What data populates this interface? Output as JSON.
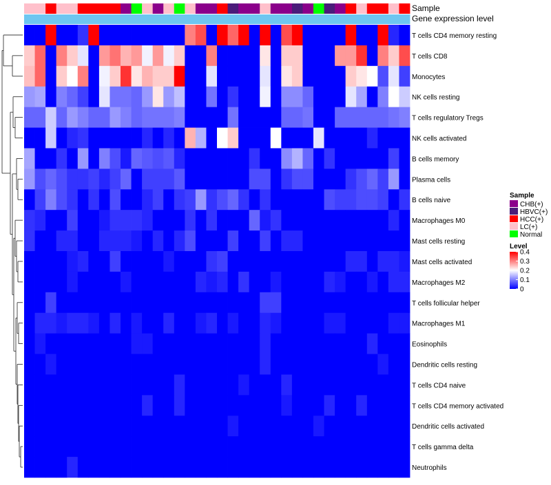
{
  "chart_data": {
    "type": "heatmap",
    "title": "",
    "annotation_tracks": [
      "Sample",
      "Gene expression level"
    ],
    "rows": [
      "T cells CD4 memory resting",
      "T cells CD8",
      "Monocytes",
      "NK cells resting",
      "T cells regulatory  Tregs",
      "NK cells activated",
      "B cells memory",
      "Plasma cells",
      "B cells naive",
      "Macrophages M0",
      "Mast cells resting",
      "Mast cells activated",
      "Macrophages M2",
      "T cells follicular helper",
      "Macrophages M1",
      "Eosinophils",
      "Dendritic cells resting",
      "T cells CD4 naive",
      "T cells CD4 memory activated",
      "Dendritic cells activated",
      "T cells gamma delta",
      "Neutrophils"
    ],
    "sample_groups": [
      "LC(+)",
      "LC(+)",
      "HCC(+)",
      "LC(+)",
      "LC(+)",
      "HCC(+)",
      "HCC(+)",
      "HCC(+)",
      "HCC(+)",
      "CHB(+)",
      "Normal",
      "LC(+)",
      "CHB(+)",
      "LC(+)",
      "Normal",
      "LC(+)",
      "CHB(+)",
      "CHB(+)",
      "HCC(+)",
      "HBVC(+)",
      "CHB(+)",
      "CHB(+)",
      "LC(+)",
      "CHB(+)",
      "CHB(+)",
      "HBVC(+)",
      "CHB(+)",
      "Normal",
      "HBVC(+)",
      "CHB(+)",
      "HCC(+)",
      "LC(+)",
      "HCC(+)",
      "HCC(+)",
      "LC(+)",
      "HCC(+)"
    ],
    "values": [
      [
        0.0,
        0.0,
        0.4,
        0.0,
        0.0,
        0.04,
        0.4,
        0.0,
        0.0,
        0.0,
        0.0,
        0.0,
        0.0,
        0.0,
        0.0,
        0.3,
        0.34,
        0.0,
        0.4,
        0.32,
        0.4,
        0.0,
        0.4,
        0.0,
        0.34,
        0.4,
        0.0,
        0.0,
        0.0,
        0.0,
        0.4,
        0.0,
        0.0,
        0.4,
        0.03,
        0.0
      ],
      [
        0.24,
        0.32,
        0.0,
        0.3,
        0.24,
        0.18,
        0.0,
        0.28,
        0.31,
        0.26,
        0.28,
        0.19,
        0.28,
        0.19,
        0.24,
        0.0,
        0.0,
        0.3,
        0.0,
        0.0,
        0.0,
        0.0,
        0.22,
        0.0,
        0.24,
        0.24,
        0.0,
        0.0,
        0.0,
        0.28,
        0.28,
        0.36,
        0.0,
        0.3,
        0.24,
        0.34
      ],
      [
        0.25,
        0.32,
        0.0,
        0.24,
        0.2,
        0.3,
        0.0,
        0.19,
        0.24,
        0.36,
        0.22,
        0.26,
        0.24,
        0.24,
        0.4,
        0.0,
        0.0,
        0.18,
        0.0,
        0.0,
        0.0,
        0.0,
        0.18,
        0.0,
        0.22,
        0.24,
        0.0,
        0.0,
        0.0,
        0.0,
        0.24,
        0.22,
        0.2,
        0.06,
        0.18,
        0.05
      ],
      [
        0.12,
        0.13,
        0.0,
        0.1,
        0.08,
        0.05,
        0.0,
        0.18,
        0.09,
        0.09,
        0.08,
        0.12,
        0.22,
        0.12,
        0.15,
        0.0,
        0.0,
        0.09,
        0.0,
        0.04,
        0.0,
        0.0,
        0.19,
        0.0,
        0.11,
        0.11,
        0.08,
        0.0,
        0.0,
        0.0,
        0.18,
        0.13,
        0.0,
        0.1,
        0.2,
        0.16
      ],
      [
        0.08,
        0.08,
        0.16,
        0.08,
        0.12,
        0.1,
        0.08,
        0.08,
        0.12,
        0.1,
        0.08,
        0.09,
        0.09,
        0.09,
        0.1,
        0.0,
        0.0,
        0.0,
        0.0,
        0.09,
        0.0,
        0.0,
        0.0,
        0.0,
        0.08,
        0.08,
        0.09,
        0.0,
        0.0,
        0.08,
        0.08,
        0.08,
        0.08,
        0.08,
        0.09,
        0.1
      ],
      [
        0.0,
        0.0,
        0.16,
        0.0,
        0.03,
        0.04,
        0.0,
        0.0,
        0.0,
        0.0,
        0.0,
        0.03,
        0.0,
        0.03,
        0.0,
        0.26,
        0.14,
        0.0,
        0.2,
        0.24,
        0.0,
        0.0,
        0.0,
        0.2,
        0.0,
        0.0,
        0.0,
        0.18,
        0.0,
        0.0,
        0.0,
        0.0,
        0.03,
        0.0,
        0.0,
        0.0
      ],
      [
        0.13,
        0.0,
        0.0,
        0.04,
        0.0,
        0.12,
        0.0,
        0.1,
        0.06,
        0.02,
        0.08,
        0.07,
        0.06,
        0.07,
        0.03,
        0.0,
        0.0,
        0.0,
        0.0,
        0.0,
        0.0,
        0.04,
        0.0,
        0.0,
        0.11,
        0.14,
        0.08,
        0.0,
        0.04,
        0.0,
        0.0,
        0.0,
        0.0,
        0.0,
        0.05,
        0.0
      ],
      [
        0.12,
        0.06,
        0.08,
        0.06,
        0.04,
        0.04,
        0.05,
        0.03,
        0.05,
        0.08,
        0.0,
        0.05,
        0.05,
        0.05,
        0.07,
        0.0,
        0.0,
        0.0,
        0.0,
        0.0,
        0.0,
        0.06,
        0.06,
        0.0,
        0.04,
        0.06,
        0.06,
        0.0,
        0.0,
        0.0,
        0.04,
        0.06,
        0.08,
        0.05,
        0.12,
        0.0
      ],
      [
        0.0,
        0.05,
        0.1,
        0.06,
        0.04,
        0.0,
        0.04,
        0.0,
        0.06,
        0.0,
        0.0,
        0.03,
        0.05,
        0.0,
        0.04,
        0.05,
        0.12,
        0.04,
        0.06,
        0.08,
        0.04,
        0.0,
        0.04,
        0.0,
        0.0,
        0.0,
        0.0,
        0.0,
        0.06,
        0.05,
        0.05,
        0.06,
        0.06,
        0.05,
        0.0,
        0.04
      ],
      [
        0.04,
        0.03,
        0.0,
        0.0,
        0.05,
        0.0,
        0.0,
        0.02,
        0.04,
        0.04,
        0.04,
        0.03,
        0.0,
        0.0,
        0.0,
        0.04,
        0.0,
        0.04,
        0.0,
        0.0,
        0.0,
        0.08,
        0.02,
        0.04,
        0.0,
        0.0,
        0.0,
        0.0,
        0.0,
        0.0,
        0.0,
        0.0,
        0.0,
        0.0,
        0.03,
        0.0
      ],
      [
        0.04,
        0.0,
        0.0,
        0.03,
        0.03,
        0.0,
        0.0,
        0.03,
        0.03,
        0.03,
        0.02,
        0.0,
        0.03,
        0.0,
        0.03,
        0.06,
        0.0,
        0.0,
        0.0,
        0.05,
        0.0,
        0.0,
        0.05,
        0.0,
        0.03,
        0.03,
        0.0,
        0.0,
        0.0,
        0.0,
        0.0,
        0.0,
        0.0,
        0.0,
        0.0,
        0.0
      ],
      [
        0.0,
        0.0,
        0.0,
        0.0,
        0.02,
        0.03,
        0.0,
        0.0,
        0.05,
        0.0,
        0.0,
        0.0,
        0.0,
        0.02,
        0.0,
        0.0,
        0.0,
        0.04,
        0.05,
        0.0,
        0.0,
        0.0,
        0.0,
        0.0,
        0.0,
        0.0,
        0.0,
        0.0,
        0.0,
        0.0,
        0.03,
        0.03,
        0.0,
        0.03,
        0.03,
        0.02
      ],
      [
        0.0,
        0.0,
        0.0,
        0.0,
        0.02,
        0.0,
        0.0,
        0.0,
        0.0,
        0.02,
        0.0,
        0.0,
        0.0,
        0.0,
        0.0,
        0.0,
        0.03,
        0.02,
        0.03,
        0.0,
        0.04,
        0.0,
        0.0,
        0.02,
        0.0,
        0.0,
        0.0,
        0.0,
        0.03,
        0.02,
        0.0,
        0.0,
        0.02,
        0.0,
        0.03,
        0.03
      ],
      [
        0.0,
        0.0,
        0.05,
        0.0,
        0.0,
        0.0,
        0.0,
        0.0,
        0.0,
        0.0,
        0.0,
        0.0,
        0.0,
        0.0,
        0.0,
        0.0,
        0.0,
        0.0,
        0.0,
        0.0,
        0.0,
        0.0,
        0.05,
        0.05,
        0.0,
        0.0,
        0.0,
        0.0,
        0.0,
        0.0,
        0.0,
        0.0,
        0.0,
        0.0,
        0.0,
        0.0
      ],
      [
        0.0,
        0.03,
        0.03,
        0.02,
        0.03,
        0.03,
        0.02,
        0.0,
        0.03,
        0.0,
        0.02,
        0.0,
        0.0,
        0.03,
        0.0,
        0.0,
        0.02,
        0.03,
        0.0,
        0.02,
        0.0,
        0.0,
        0.03,
        0.02,
        0.0,
        0.0,
        0.0,
        0.0,
        0.02,
        0.02,
        0.0,
        0.0,
        0.0,
        0.0,
        0.02,
        0.02
      ],
      [
        0.0,
        0.02,
        0.0,
        0.0,
        0.0,
        0.0,
        0.0,
        0.0,
        0.0,
        0.0,
        0.02,
        0.02,
        0.0,
        0.0,
        0.0,
        0.0,
        0.0,
        0.0,
        0.0,
        0.0,
        0.0,
        0.0,
        0.03,
        0.0,
        0.0,
        0.0,
        0.0,
        0.0,
        0.0,
        0.0,
        0.0,
        0.0,
        0.03,
        0.0,
        0.0,
        0.0
      ],
      [
        0.0,
        0.0,
        0.02,
        0.0,
        0.0,
        0.0,
        0.0,
        0.0,
        0.0,
        0.0,
        0.0,
        0.0,
        0.0,
        0.0,
        0.0,
        0.0,
        0.0,
        0.0,
        0.0,
        0.0,
        0.0,
        0.0,
        0.03,
        0.0,
        0.0,
        0.0,
        0.0,
        0.0,
        0.0,
        0.0,
        0.0,
        0.0,
        0.0,
        0.02,
        0.0,
        0.0
      ],
      [
        0.0,
        0.0,
        0.0,
        0.0,
        0.0,
        0.0,
        0.0,
        0.0,
        0.0,
        0.0,
        0.0,
        0.0,
        0.0,
        0.0,
        0.03,
        0.0,
        0.0,
        0.0,
        0.0,
        0.0,
        0.02,
        0.0,
        0.0,
        0.0,
        0.03,
        0.0,
        0.0,
        0.0,
        0.0,
        0.0,
        0.0,
        0.0,
        0.0,
        0.0,
        0.0,
        0.0
      ],
      [
        0.0,
        0.0,
        0.0,
        0.0,
        0.0,
        0.0,
        0.0,
        0.0,
        0.0,
        0.0,
        0.0,
        0.03,
        0.0,
        0.0,
        0.03,
        0.0,
        0.0,
        0.0,
        0.0,
        0.0,
        0.0,
        0.0,
        0.0,
        0.0,
        0.02,
        0.0,
        0.0,
        0.0,
        0.03,
        0.0,
        0.0,
        0.03,
        0.0,
        0.0,
        0.0,
        0.0
      ],
      [
        0.0,
        0.0,
        0.0,
        0.0,
        0.0,
        0.0,
        0.0,
        0.0,
        0.0,
        0.0,
        0.0,
        0.0,
        0.0,
        0.0,
        0.0,
        0.0,
        0.0,
        0.0,
        0.0,
        0.02,
        0.0,
        0.0,
        0.0,
        0.0,
        0.0,
        0.0,
        0.0,
        0.02,
        0.0,
        0.0,
        0.0,
        0.0,
        0.0,
        0.0,
        0.0,
        0.0
      ],
      [
        0.0,
        0.0,
        0.0,
        0.0,
        0.0,
        0.0,
        0.0,
        0.0,
        0.0,
        0.0,
        0.0,
        0.0,
        0.0,
        0.0,
        0.0,
        0.0,
        0.0,
        0.0,
        0.0,
        0.0,
        0.0,
        0.0,
        0.0,
        0.0,
        0.0,
        0.0,
        0.0,
        0.0,
        0.0,
        0.0,
        0.0,
        0.0,
        0.0,
        0.0,
        0.0,
        0.0
      ],
      [
        0.0,
        0.0,
        0.0,
        0.0,
        0.03,
        0.0,
        0.0,
        0.0,
        0.0,
        0.0,
        0.0,
        0.0,
        0.0,
        0.0,
        0.0,
        0.0,
        0.0,
        0.0,
        0.0,
        0.0,
        0.0,
        0.0,
        0.0,
        0.0,
        0.0,
        0.0,
        0.0,
        0.0,
        0.0,
        0.0,
        0.0,
        0.0,
        0.0,
        0.0,
        0.0,
        0.0
      ]
    ],
    "value_range": [
      0,
      0.4
    ],
    "colorbar": {
      "title": "Level",
      "ticks": [
        "0.4",
        "0.3",
        "0.2",
        "0.1",
        "0"
      ],
      "tick_values": [
        0.4,
        0.3,
        0.2,
        0.1,
        0
      ],
      "colors": [
        "#0000ff",
        "#ffffff",
        "#ff0000"
      ]
    },
    "legend": {
      "title": "Sample",
      "placement": "right",
      "entries": [
        {
          "label": "CHB(+)",
          "color": "#8b008b"
        },
        {
          "label": "HBVC(+)",
          "color": "#4b1c7a"
        },
        {
          "label": "HCC(+)",
          "color": "#ff0000"
        },
        {
          "label": "LC(+)",
          "color": "#ffc0cb"
        },
        {
          "label": "Normal",
          "color": "#00ff00"
        }
      ]
    },
    "expression_track_color": "#6ec6f0",
    "dendrogram": "left"
  }
}
